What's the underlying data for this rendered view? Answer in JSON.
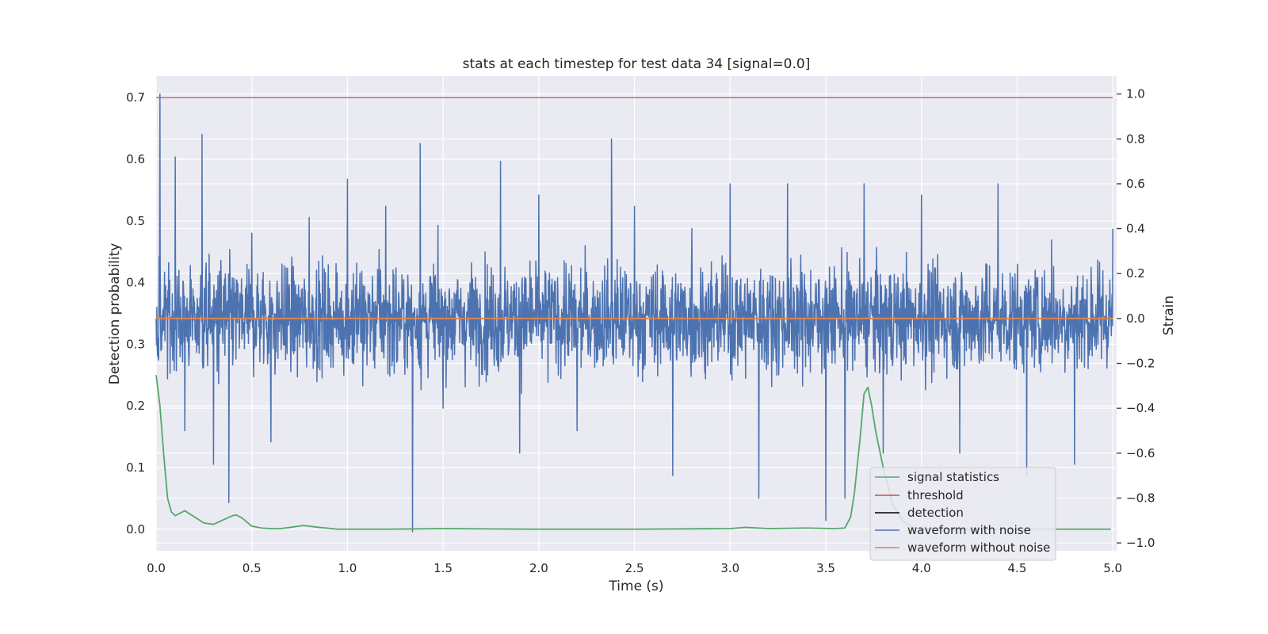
{
  "chart_data": {
    "type": "line",
    "title": "stats at each timestep for test data 34 [signal=0.0]",
    "xlabel": "Time (s)",
    "ylabel": "Detection probability",
    "y2label": "Strain",
    "xlim": [
      0.0,
      5.02
    ],
    "ylim": [
      -0.035,
      0.735
    ],
    "y2lim": [
      -1.035,
      1.08
    ],
    "xticks": [
      0.0,
      0.5,
      1.0,
      1.5,
      2.0,
      2.5,
      3.0,
      3.5,
      4.0,
      4.5,
      5.0
    ],
    "xtick_labels": [
      "0.0",
      "0.5",
      "1.0",
      "1.5",
      "2.0",
      "2.5",
      "3.0",
      "3.5",
      "4.0",
      "4.5",
      "5.0"
    ],
    "yticks": [
      0.0,
      0.1,
      0.2,
      0.3,
      0.4,
      0.5,
      0.6,
      0.7
    ],
    "ytick_labels": [
      "0.0",
      "0.1",
      "0.2",
      "0.3",
      "0.4",
      "0.5",
      "0.6",
      "0.7"
    ],
    "y2ticks": [
      -1.0,
      -0.8,
      -0.6,
      -0.4,
      -0.2,
      0.0,
      0.2,
      0.4,
      0.6,
      0.8,
      1.0
    ],
    "y2tick_labels": [
      "−1.0",
      "−0.8",
      "−0.6",
      "−0.4",
      "−0.2",
      "0.0",
      "0.2",
      "0.4",
      "0.6",
      "0.8",
      "1.0"
    ],
    "grid": true,
    "legend_position": "lower-right",
    "series": [
      {
        "name": "signal statistics",
        "axis": "left",
        "color": "#55a868",
        "x": [
          0.0,
          0.02,
          0.04,
          0.06,
          0.08,
          0.1,
          0.15,
          0.2,
          0.25,
          0.3,
          0.35,
          0.4,
          0.42,
          0.45,
          0.5,
          0.55,
          0.6,
          0.65,
          0.7,
          0.77,
          0.85,
          0.95,
          1.2,
          1.5,
          2.0,
          2.5,
          3.0,
          3.08,
          3.2,
          3.4,
          3.55,
          3.6,
          3.63,
          3.65,
          3.68,
          3.7,
          3.72,
          3.74,
          3.76,
          3.8,
          3.85,
          3.9,
          3.95,
          4.0,
          4.5,
          4.99
        ],
        "y": [
          0.25,
          0.2,
          0.12,
          0.05,
          0.028,
          0.022,
          0.03,
          0.02,
          0.01,
          0.008,
          0.015,
          0.022,
          0.023,
          0.018,
          0.005,
          0.002,
          0.001,
          0.001,
          0.003,
          0.006,
          0.003,
          0.0,
          0.0,
          0.001,
          0.0,
          0.0,
          0.001,
          0.003,
          0.001,
          0.002,
          0.001,
          0.002,
          0.02,
          0.06,
          0.15,
          0.22,
          0.23,
          0.2,
          0.16,
          0.1,
          0.04,
          0.015,
          0.003,
          0.0,
          0.0,
          0.0
        ]
      },
      {
        "name": "threshold",
        "axis": "left",
        "color": "#c44e52",
        "x": [
          0.0,
          5.0
        ],
        "y": [
          0.7,
          0.7
        ]
      },
      {
        "name": "detection",
        "axis": "left",
        "color": "#000000",
        "x": [],
        "y": []
      },
      {
        "name": "waveform with noise",
        "axis": "right",
        "color": "#4c72b0",
        "x": [
          0.0,
          0.02,
          0.1,
          0.15,
          0.24,
          0.3,
          0.38,
          0.5,
          0.6,
          0.8,
          1.0,
          1.08,
          1.1,
          1.2,
          1.34,
          1.38,
          1.5,
          1.8,
          1.9,
          2.0,
          2.14,
          2.2,
          2.38,
          2.5,
          2.7,
          2.8,
          3.0,
          3.15,
          3.3,
          3.5,
          3.6,
          3.7,
          3.8,
          4.0,
          4.2,
          4.4,
          4.55,
          4.68,
          4.8,
          5.0
        ],
        "y": [
          0.0,
          1.0,
          0.72,
          -0.5,
          0.82,
          -0.65,
          -0.82,
          0.38,
          -0.55,
          0.45,
          0.62,
          -0.3,
          0.02,
          0.5,
          -0.95,
          0.78,
          -0.4,
          0.7,
          -0.6,
          0.55,
          0.0,
          -0.5,
          0.8,
          0.5,
          -0.7,
          0.4,
          0.6,
          -0.8,
          0.6,
          -0.9,
          -0.8,
          0.6,
          -0.6,
          0.55,
          -0.6,
          0.6,
          -0.7,
          0.35,
          -0.65,
          0.4
        ]
      },
      {
        "name": "waveform without noise",
        "axis": "right",
        "color": "#dd8452",
        "x": [
          0.0,
          5.0
        ],
        "y": [
          0.0,
          0.0
        ]
      }
    ]
  }
}
